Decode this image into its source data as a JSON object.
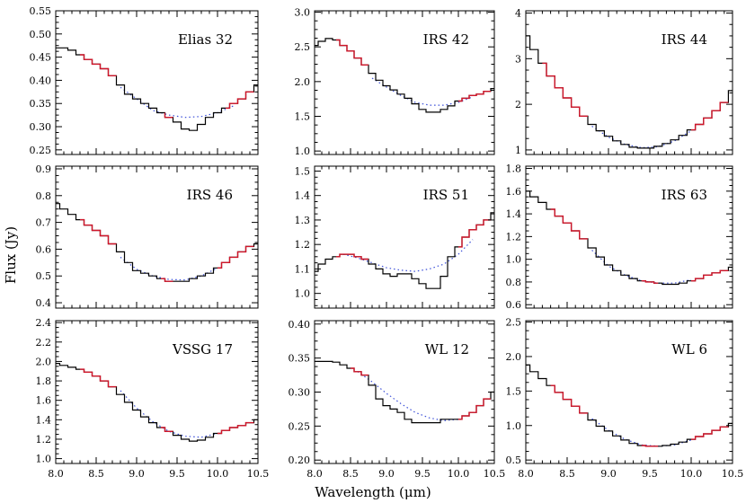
{
  "figure": {
    "ylabel": "Flux (Jy)",
    "xlabel": "Wavelength (μm)"
  },
  "colors": {
    "observed": "#000000",
    "fit_region": "#d0162a",
    "continuum": "#3b4fd8",
    "frame": "#000000"
  },
  "chart_data": [
    {
      "type": "line",
      "title": "Elias 32",
      "xlim": [
        8.0,
        10.5
      ],
      "ylim": [
        0.24,
        0.55
      ],
      "xticks": [
        8.0,
        8.5,
        9.0,
        9.5,
        10.0,
        10.5
      ],
      "xtick_labels": [
        "",
        "",
        "",
        "",
        "",
        ""
      ],
      "yticks": [
        0.25,
        0.3,
        0.35,
        0.4,
        0.45,
        0.5,
        0.55
      ],
      "ytick_labels": [
        "0.25",
        "0.30",
        "0.35",
        "0.40",
        "0.45",
        "0.50",
        "0.55"
      ],
      "fit_ranges": [
        [
          8.3,
          8.75
        ],
        [
          9.35,
          9.45
        ],
        [
          10.1,
          10.45
        ]
      ],
      "spectrum": {
        "x": [
          8.0,
          8.1,
          8.2,
          8.3,
          8.4,
          8.5,
          8.6,
          8.7,
          8.8,
          8.9,
          9.0,
          9.1,
          9.2,
          9.3,
          9.4,
          9.5,
          9.6,
          9.7,
          9.8,
          9.9,
          10.0,
          10.1,
          10.2,
          10.3,
          10.4,
          10.5
        ],
        "y": [
          0.47,
          0.47,
          0.465,
          0.455,
          0.445,
          0.435,
          0.425,
          0.41,
          0.39,
          0.37,
          0.36,
          0.35,
          0.34,
          0.33,
          0.32,
          0.31,
          0.295,
          0.292,
          0.305,
          0.32,
          0.33,
          0.34,
          0.35,
          0.36,
          0.375,
          0.39
        ]
      },
      "continuum": {
        "x": [
          8.8,
          9.0,
          9.2,
          9.4,
          9.6,
          9.8,
          10.0,
          10.2
        ],
        "y": [
          0.385,
          0.36,
          0.335,
          0.325,
          0.32,
          0.322,
          0.33,
          0.345
        ]
      }
    },
    {
      "type": "line",
      "title": "IRS 42",
      "xlim": [
        8.0,
        10.5
      ],
      "ylim": [
        0.95,
        3.02
      ],
      "xticks": [
        8.0,
        8.5,
        9.0,
        9.5,
        10.0,
        10.5
      ],
      "xtick_labels": [
        "",
        "",
        "",
        "",
        "",
        ""
      ],
      "yticks": [
        1.0,
        1.5,
        2.0,
        2.5,
        3.0
      ],
      "ytick_labels": [
        "1.0",
        "1.5",
        "2.0",
        "2.5",
        "3.0"
      ],
      "fit_ranges": [
        [
          8.3,
          8.75
        ],
        [
          10.0,
          10.45
        ]
      ],
      "spectrum": {
        "x": [
          8.0,
          8.1,
          8.2,
          8.3,
          8.4,
          8.5,
          8.6,
          8.7,
          8.8,
          8.9,
          9.0,
          9.1,
          9.2,
          9.3,
          9.4,
          9.5,
          9.6,
          9.7,
          9.8,
          9.9,
          10.0,
          10.1,
          10.2,
          10.3,
          10.4,
          10.5
        ],
        "y": [
          2.52,
          2.58,
          2.62,
          2.6,
          2.52,
          2.44,
          2.34,
          2.24,
          2.12,
          2.02,
          1.94,
          1.88,
          1.82,
          1.76,
          1.68,
          1.6,
          1.56,
          1.56,
          1.6,
          1.65,
          1.72,
          1.76,
          1.8,
          1.82,
          1.86,
          1.9
        ]
      },
      "continuum": {
        "x": [
          8.8,
          9.0,
          9.2,
          9.4,
          9.6,
          9.8,
          10.0,
          10.2
        ],
        "y": [
          2.05,
          1.92,
          1.8,
          1.7,
          1.66,
          1.66,
          1.7,
          1.78
        ]
      }
    },
    {
      "type": "line",
      "title": "IRS 44",
      "xlim": [
        8.0,
        10.5
      ],
      "ylim": [
        0.9,
        4.05
      ],
      "xticks": [
        8.0,
        8.5,
        9.0,
        9.5,
        10.0,
        10.5
      ],
      "xtick_labels": [
        "",
        "",
        "",
        "",
        "",
        ""
      ],
      "yticks": [
        1,
        2,
        3,
        4
      ],
      "ytick_labels": [
        "1",
        "2",
        "3",
        "4"
      ],
      "fit_ranges": [
        [
          8.2,
          8.75
        ],
        [
          10.0,
          10.45
        ]
      ],
      "spectrum": {
        "x": [
          8.0,
          8.1,
          8.2,
          8.3,
          8.4,
          8.5,
          8.6,
          8.7,
          8.8,
          8.9,
          9.0,
          9.1,
          9.2,
          9.3,
          9.4,
          9.5,
          9.6,
          9.7,
          9.8,
          9.9,
          10.0,
          10.1,
          10.2,
          10.3,
          10.4,
          10.5
        ],
        "y": [
          3.5,
          3.2,
          2.9,
          2.62,
          2.36,
          2.14,
          1.94,
          1.74,
          1.56,
          1.42,
          1.3,
          1.2,
          1.12,
          1.06,
          1.04,
          1.04,
          1.08,
          1.14,
          1.22,
          1.32,
          1.44,
          1.56,
          1.7,
          1.86,
          2.04,
          2.3
        ]
      },
      "continuum": {
        "x": [
          8.8,
          9.0,
          9.2,
          9.4,
          9.6,
          9.8,
          10.0
        ],
        "y": [
          1.52,
          1.28,
          1.12,
          1.05,
          1.07,
          1.2,
          1.42
        ]
      }
    },
    {
      "type": "line",
      "title": "IRS 46",
      "xlim": [
        8.0,
        10.5
      ],
      "ylim": [
        0.38,
        0.91
      ],
      "xticks": [
        8.0,
        8.5,
        9.0,
        9.5,
        10.0,
        10.5
      ],
      "xtick_labels": [
        "",
        "",
        "",
        "",
        "",
        ""
      ],
      "yticks": [
        0.4,
        0.5,
        0.6,
        0.7,
        0.8,
        0.9
      ],
      "ytick_labels": [
        "0.4",
        "0.5",
        "0.6",
        "0.7",
        "0.8",
        "0.9"
      ],
      "fit_ranges": [
        [
          8.3,
          8.75
        ],
        [
          9.3,
          9.45
        ],
        [
          10.0,
          10.45
        ]
      ],
      "spectrum": {
        "x": [
          8.0,
          8.1,
          8.2,
          8.3,
          8.4,
          8.5,
          8.6,
          8.7,
          8.8,
          8.9,
          9.0,
          9.1,
          9.2,
          9.3,
          9.4,
          9.5,
          9.6,
          9.7,
          9.8,
          9.9,
          10.0,
          10.1,
          10.2,
          10.3,
          10.4,
          10.5
        ],
        "y": [
          0.77,
          0.75,
          0.73,
          0.71,
          0.69,
          0.67,
          0.65,
          0.62,
          0.59,
          0.55,
          0.52,
          0.51,
          0.5,
          0.49,
          0.48,
          0.48,
          0.48,
          0.49,
          0.5,
          0.51,
          0.53,
          0.55,
          0.57,
          0.59,
          0.61,
          0.62
        ]
      },
      "continuum": {
        "x": [
          8.8,
          9.0,
          9.2,
          9.4,
          9.6,
          9.8,
          10.0
        ],
        "y": [
          0.57,
          0.525,
          0.5,
          0.487,
          0.485,
          0.5,
          0.53
        ]
      }
    },
    {
      "type": "line",
      "title": "IRS 51",
      "xlim": [
        8.0,
        10.5
      ],
      "ylim": [
        0.94,
        1.52
      ],
      "xticks": [
        8.0,
        8.5,
        9.0,
        9.5,
        10.0,
        10.5
      ],
      "xtick_labels": [
        "",
        "",
        "",
        "",
        "",
        ""
      ],
      "yticks": [
        1.0,
        1.1,
        1.2,
        1.3,
        1.4,
        1.5
      ],
      "ytick_labels": [
        "1.0",
        "1.1",
        "1.2",
        "1.3",
        "1.4",
        "1.5"
      ],
      "fit_ranges": [
        [
          8.3,
          8.75
        ],
        [
          10.0,
          10.45
        ]
      ],
      "spectrum": {
        "x": [
          8.0,
          8.1,
          8.2,
          8.3,
          8.4,
          8.5,
          8.6,
          8.7,
          8.8,
          8.9,
          9.0,
          9.1,
          9.2,
          9.3,
          9.4,
          9.5,
          9.6,
          9.7,
          9.8,
          9.9,
          10.0,
          10.1,
          10.2,
          10.3,
          10.4,
          10.5
        ],
        "y": [
          1.09,
          1.12,
          1.14,
          1.15,
          1.16,
          1.16,
          1.15,
          1.14,
          1.12,
          1.1,
          1.08,
          1.07,
          1.08,
          1.08,
          1.06,
          1.04,
          1.02,
          1.02,
          1.07,
          1.15,
          1.19,
          1.23,
          1.26,
          1.28,
          1.3,
          1.33
        ]
      },
      "continuum": {
        "x": [
          8.4,
          8.6,
          8.8,
          9.0,
          9.2,
          9.4,
          9.6,
          9.8,
          10.0,
          10.2
        ],
        "y": [
          1.16,
          1.145,
          1.125,
          1.105,
          1.095,
          1.09,
          1.1,
          1.12,
          1.16,
          1.22
        ]
      }
    },
    {
      "type": "line",
      "title": "IRS 63",
      "xlim": [
        8.0,
        10.5
      ],
      "ylim": [
        0.57,
        1.82
      ],
      "xticks": [
        8.0,
        8.5,
        9.0,
        9.5,
        10.0,
        10.5
      ],
      "xtick_labels": [
        "",
        "",
        "",
        "",
        "",
        ""
      ],
      "yticks": [
        0.6,
        0.8,
        1.0,
        1.2,
        1.4,
        1.6,
        1.8
      ],
      "ytick_labels": [
        "0.6",
        "0.8",
        "1.0",
        "1.2",
        "1.4",
        "1.6",
        "1.8"
      ],
      "fit_ranges": [
        [
          8.3,
          8.75
        ],
        [
          9.4,
          9.6
        ],
        [
          10.0,
          10.45
        ]
      ],
      "spectrum": {
        "x": [
          8.0,
          8.1,
          8.2,
          8.3,
          8.4,
          8.5,
          8.6,
          8.7,
          8.8,
          8.9,
          9.0,
          9.1,
          9.2,
          9.3,
          9.4,
          9.5,
          9.6,
          9.7,
          9.8,
          9.9,
          10.0,
          10.1,
          10.2,
          10.3,
          10.4,
          10.5
        ],
        "y": [
          1.6,
          1.55,
          1.5,
          1.44,
          1.38,
          1.32,
          1.25,
          1.18,
          1.1,
          1.02,
          0.95,
          0.9,
          0.86,
          0.83,
          0.81,
          0.8,
          0.79,
          0.78,
          0.78,
          0.79,
          0.81,
          0.83,
          0.86,
          0.88,
          0.9,
          0.93
        ]
      },
      "continuum": {
        "x": [
          8.8,
          9.0,
          9.2,
          9.4,
          9.6,
          9.8,
          10.0
        ],
        "y": [
          1.08,
          0.94,
          0.86,
          0.81,
          0.79,
          0.79,
          0.82
        ]
      }
    },
    {
      "type": "line",
      "title": "VSSG 17",
      "xlim": [
        8.0,
        10.5
      ],
      "ylim": [
        0.95,
        2.42
      ],
      "xticks": [
        8.0,
        8.5,
        9.0,
        9.5,
        10.0,
        10.5
      ],
      "xtick_labels": [
        "8.0",
        "8.5",
        "9.0",
        "9.5",
        "10.0",
        "10.5"
      ],
      "yticks": [
        1.0,
        1.2,
        1.4,
        1.6,
        1.8,
        2.0,
        2.2,
        2.4
      ],
      "ytick_labels": [
        "1.0",
        "1.2",
        "1.4",
        "1.6",
        "1.8",
        "2.0",
        "2.2",
        "2.4"
      ],
      "fit_ranges": [
        [
          8.3,
          8.75
        ],
        [
          9.3,
          9.45
        ],
        [
          10.0,
          10.45
        ]
      ],
      "spectrum": {
        "x": [
          8.0,
          8.1,
          8.2,
          8.3,
          8.4,
          8.5,
          8.6,
          8.7,
          8.8,
          8.9,
          9.0,
          9.1,
          9.2,
          9.3,
          9.4,
          9.5,
          9.6,
          9.7,
          9.8,
          9.9,
          10.0,
          10.1,
          10.2,
          10.3,
          10.4,
          10.5
        ],
        "y": [
          1.98,
          1.96,
          1.94,
          1.92,
          1.89,
          1.85,
          1.8,
          1.74,
          1.66,
          1.58,
          1.5,
          1.43,
          1.37,
          1.32,
          1.28,
          1.24,
          1.2,
          1.18,
          1.19,
          1.22,
          1.26,
          1.29,
          1.32,
          1.34,
          1.37,
          1.4
        ]
      },
      "continuum": {
        "x": [
          8.8,
          9.0,
          9.2,
          9.4,
          9.6,
          9.8,
          10.0
        ],
        "y": [
          1.7,
          1.52,
          1.38,
          1.28,
          1.23,
          1.22,
          1.26
        ]
      }
    },
    {
      "type": "line",
      "title": "WL 12",
      "xlim": [
        8.0,
        10.5
      ],
      "ylim": [
        0.195,
        0.405
      ],
      "xticks": [
        8.0,
        8.5,
        9.0,
        9.5,
        10.0,
        10.5
      ],
      "xtick_labels": [
        "8.0",
        "8.5",
        "9.0",
        "9.5",
        "10.0",
        "10.5"
      ],
      "yticks": [
        0.2,
        0.25,
        0.3,
        0.35,
        0.4
      ],
      "ytick_labels": [
        "0.20",
        "0.25",
        "0.30",
        "0.35",
        "0.40"
      ],
      "fit_ranges": [
        [
          8.5,
          8.75
        ],
        [
          10.0,
          10.45
        ]
      ],
      "spectrum": {
        "x": [
          8.0,
          8.1,
          8.2,
          8.3,
          8.4,
          8.5,
          8.6,
          8.7,
          8.8,
          8.9,
          9.0,
          9.1,
          9.2,
          9.3,
          9.4,
          9.5,
          9.6,
          9.7,
          9.8,
          9.9,
          10.0,
          10.1,
          10.2,
          10.3,
          10.4,
          10.5
        ],
        "y": [
          0.345,
          0.345,
          0.345,
          0.344,
          0.34,
          0.335,
          0.33,
          0.325,
          0.31,
          0.29,
          0.28,
          0.275,
          0.27,
          0.26,
          0.255,
          0.255,
          0.255,
          0.255,
          0.26,
          0.26,
          0.26,
          0.265,
          0.27,
          0.28,
          0.29,
          0.3
        ]
      },
      "continuum": {
        "x": [
          8.6,
          8.8,
          9.0,
          9.2,
          9.4,
          9.6,
          9.8,
          10.0
        ],
        "y": [
          0.33,
          0.315,
          0.298,
          0.283,
          0.27,
          0.262,
          0.258,
          0.26
        ]
      }
    },
    {
      "type": "line",
      "title": "WL 6",
      "xlim": [
        8.0,
        10.5
      ],
      "ylim": [
        0.45,
        2.52
      ],
      "xticks": [
        8.0,
        8.5,
        9.0,
        9.5,
        10.0,
        10.5
      ],
      "xtick_labels": [
        "8.0",
        "8.5",
        "9.0",
        "9.5",
        "10.0",
        "10.5"
      ],
      "yticks": [
        0.5,
        1.0,
        1.5,
        2.0,
        2.5
      ],
      "ytick_labels": [
        "0.5",
        "1.0",
        "1.5",
        "2.0",
        "2.5"
      ],
      "fit_ranges": [
        [
          8.3,
          8.75
        ],
        [
          9.4,
          9.6
        ],
        [
          10.0,
          10.45
        ]
      ],
      "spectrum": {
        "x": [
          8.0,
          8.1,
          8.2,
          8.3,
          8.4,
          8.5,
          8.6,
          8.7,
          8.8,
          8.9,
          9.0,
          9.1,
          9.2,
          9.3,
          9.4,
          9.5,
          9.6,
          9.7,
          9.8,
          9.9,
          10.0,
          10.1,
          10.2,
          10.3,
          10.4,
          10.5
        ],
        "y": [
          1.88,
          1.78,
          1.68,
          1.58,
          1.48,
          1.38,
          1.28,
          1.18,
          1.08,
          0.99,
          0.92,
          0.85,
          0.79,
          0.74,
          0.71,
          0.7,
          0.7,
          0.71,
          0.73,
          0.76,
          0.8,
          0.84,
          0.88,
          0.93,
          0.98,
          1.03
        ]
      },
      "continuum": {
        "x": [
          8.8,
          9.0,
          9.2,
          9.4,
          9.6,
          9.8,
          10.0
        ],
        "y": [
          1.1,
          0.93,
          0.8,
          0.72,
          0.7,
          0.72,
          0.79
        ]
      }
    }
  ]
}
